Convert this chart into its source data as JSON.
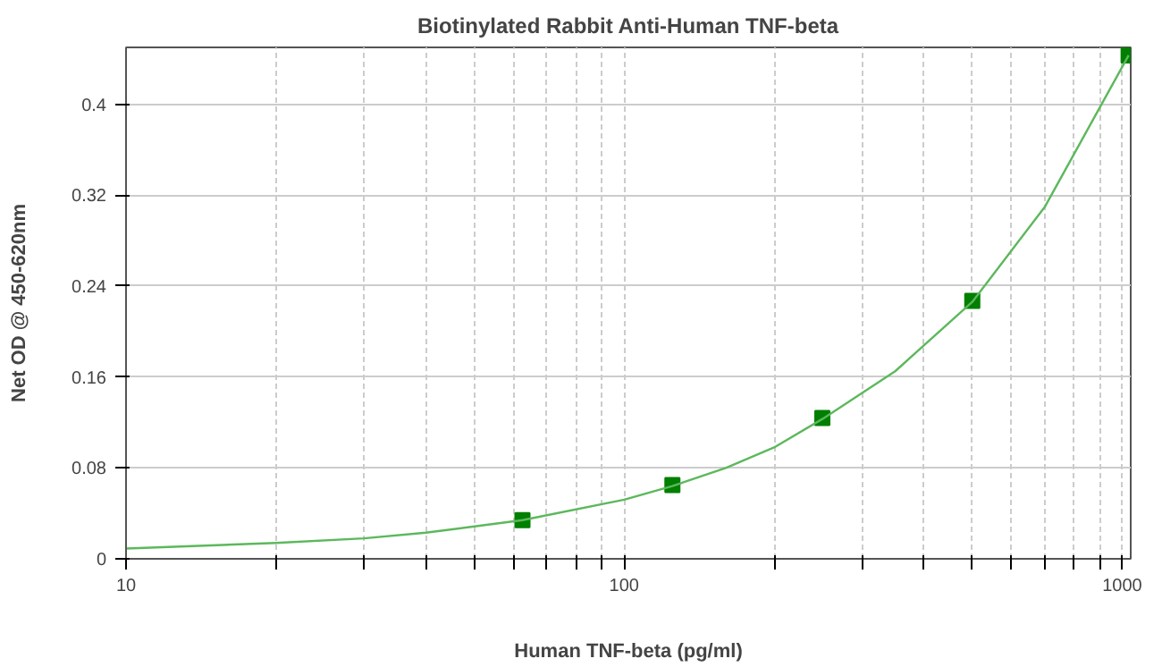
{
  "chart_data": {
    "type": "scatter",
    "title": "Biotinylated Rabbit Anti-Human TNF-beta",
    "xlabel": "Human TNF-beta (pg/ml)",
    "ylabel": "Net OD @ 450-620nm",
    "log": "x",
    "grid": true,
    "marker": "square",
    "xlim": [
      10,
      1040
    ],
    "ylim": [
      0,
      0.45
    ],
    "xticks": [
      10,
      {
        "value": 20,
        "label": null
      },
      {
        "value": 30,
        "label": null
      },
      {
        "value": 40,
        "label": null
      },
      {
        "value": 50,
        "label": null
      },
      {
        "value": 60,
        "label": null
      },
      {
        "value": 70,
        "label": null
      },
      {
        "value": 80,
        "label": null
      },
      {
        "value": 90,
        "label": null
      },
      100,
      {
        "value": 200,
        "label": null
      },
      {
        "value": 300,
        "label": null
      },
      {
        "value": 400,
        "label": null
      },
      {
        "value": 500,
        "label": null
      },
      {
        "value": 600,
        "label": null
      },
      {
        "value": 700,
        "label": null
      },
      {
        "value": 800,
        "label": null
      },
      {
        "value": 900,
        "label": null
      },
      1000
    ],
    "yticks": [
      0,
      0.08,
      0.16,
      0.24,
      0.32,
      0.4
    ],
    "series": [
      {
        "color": "#007f00",
        "x": [
          62.5,
          125,
          250,
          500,
          1030
        ],
        "values": [
          0.034,
          0.065,
          0.124,
          0.227,
          0.443
        ]
      },
      {
        "type": "line",
        "marker": "none",
        "color": "#5cb85c",
        "x": [
          10,
          20,
          30,
          40,
          62.5,
          100,
          125,
          160,
          200,
          250,
          350,
          500,
          700,
          1030
        ],
        "values": [
          0.009,
          0.014,
          0.018,
          0.023,
          0.034,
          0.052,
          0.064,
          0.08,
          0.098,
          0.123,
          0.165,
          0.226,
          0.31,
          0.443
        ]
      }
    ]
  }
}
